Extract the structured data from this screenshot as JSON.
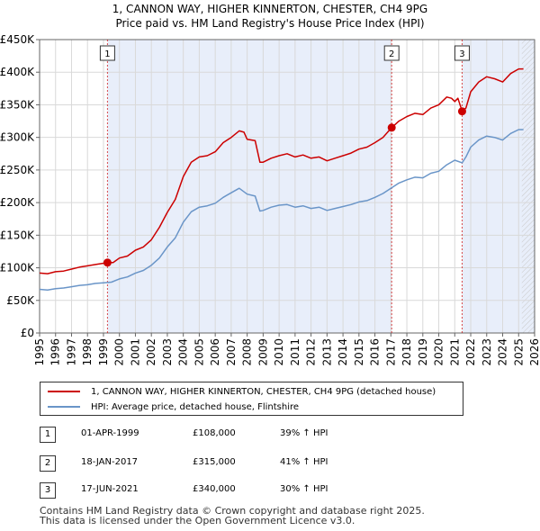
{
  "chart_data": {
    "type": "line",
    "title": "1, CANNON WAY, HIGHER KINNERTON, CHESTER, CH4 9PG",
    "subtitle": "Price paid vs. HM Land Registry's House Price Index (HPI)",
    "xlim": [
      1995,
      2026
    ],
    "ylim": [
      0,
      450000
    ],
    "x_ticks": [
      "1995",
      "1996",
      "1997",
      "1998",
      "1999",
      "2000",
      "2001",
      "2002",
      "2003",
      "2004",
      "2005",
      "2006",
      "2007",
      "2008",
      "2009",
      "2010",
      "2011",
      "2012",
      "2013",
      "2014",
      "2015",
      "2016",
      "2017",
      "2018",
      "2019",
      "2020",
      "2021",
      "2022",
      "2023",
      "2024",
      "2025",
      "2026"
    ],
    "y_ticks": [
      {
        "value": 0,
        "label": "£0"
      },
      {
        "value": 50000,
        "label": "£50K"
      },
      {
        "value": 100000,
        "label": "£100K"
      },
      {
        "value": 150000,
        "label": "£150K"
      },
      {
        "value": 200000,
        "label": "£200K"
      },
      {
        "value": 250000,
        "label": "£250K"
      },
      {
        "value": 300000,
        "label": "£300K"
      },
      {
        "value": 350000,
        "label": "£350K"
      },
      {
        "value": 400000,
        "label": "£400K"
      },
      {
        "value": 450000,
        "label": "£450K"
      }
    ],
    "grid": true,
    "shaded_periods": [
      [
        1999.25,
        2017.05
      ],
      [
        2021.46,
        2026
      ]
    ],
    "projection_start": 2025.2,
    "series": [
      {
        "name": "1, CANNON WAY, HIGHER KINNERTON, CHESTER, CH4 9PG (detached house)",
        "color": "#cc0000",
        "points": [
          [
            1995,
            92000
          ],
          [
            1995.5,
            91000
          ],
          [
            1996,
            94000
          ],
          [
            1996.5,
            95000
          ],
          [
            1997,
            98000
          ],
          [
            1997.5,
            101000
          ],
          [
            1998,
            103000
          ],
          [
            1998.5,
            105000
          ],
          [
            1999,
            107000
          ],
          [
            1999.25,
            108000
          ],
          [
            1999.6,
            108000
          ],
          [
            2000,
            115000
          ],
          [
            2000.5,
            118000
          ],
          [
            2001,
            127000
          ],
          [
            2001.5,
            132000
          ],
          [
            2002,
            143000
          ],
          [
            2002.5,
            162000
          ],
          [
            2003,
            185000
          ],
          [
            2003.5,
            205000
          ],
          [
            2004,
            240000
          ],
          [
            2004.5,
            262000
          ],
          [
            2005,
            270000
          ],
          [
            2005.5,
            272000
          ],
          [
            2006,
            278000
          ],
          [
            2006.5,
            292000
          ],
          [
            2007,
            300000
          ],
          [
            2007.5,
            310000
          ],
          [
            2007.8,
            308000
          ],
          [
            2008,
            297000
          ],
          [
            2008.5,
            295000
          ],
          [
            2008.8,
            262000
          ],
          [
            2009,
            262000
          ],
          [
            2009.5,
            268000
          ],
          [
            2010,
            272000
          ],
          [
            2010.5,
            275000
          ],
          [
            2011,
            270000
          ],
          [
            2011.5,
            273000
          ],
          [
            2012,
            268000
          ],
          [
            2012.5,
            270000
          ],
          [
            2013,
            264000
          ],
          [
            2013.5,
            268000
          ],
          [
            2014,
            272000
          ],
          [
            2014.5,
            276000
          ],
          [
            2015,
            282000
          ],
          [
            2015.5,
            285000
          ],
          [
            2016,
            292000
          ],
          [
            2016.5,
            300000
          ],
          [
            2017.05,
            315000
          ],
          [
            2017.5,
            325000
          ],
          [
            2018,
            332000
          ],
          [
            2018.5,
            337000
          ],
          [
            2019,
            335000
          ],
          [
            2019.5,
            345000
          ],
          [
            2020,
            350000
          ],
          [
            2020.5,
            362000
          ],
          [
            2020.8,
            360000
          ],
          [
            2021,
            355000
          ],
          [
            2021.2,
            360000
          ],
          [
            2021.46,
            340000
          ],
          [
            2021.7,
            345000
          ],
          [
            2022,
            370000
          ],
          [
            2022.5,
            385000
          ],
          [
            2023,
            393000
          ],
          [
            2023.5,
            390000
          ],
          [
            2024,
            385000
          ],
          [
            2024.5,
            398000
          ],
          [
            2025,
            405000
          ],
          [
            2025.3,
            405000
          ]
        ]
      },
      {
        "name": "HPI: Average price, detached house, Flintshire",
        "color": "#6a95c8",
        "points": [
          [
            1995,
            67000
          ],
          [
            1995.5,
            66000
          ],
          [
            1996,
            68000
          ],
          [
            1996.5,
            69000
          ],
          [
            1997,
            71000
          ],
          [
            1997.5,
            73000
          ],
          [
            1998,
            74000
          ],
          [
            1998.5,
            76000
          ],
          [
            1999,
            77000
          ],
          [
            1999.5,
            78000
          ],
          [
            2000,
            83000
          ],
          [
            2000.5,
            86000
          ],
          [
            2001,
            92000
          ],
          [
            2001.5,
            96000
          ],
          [
            2002,
            104000
          ],
          [
            2002.5,
            115000
          ],
          [
            2003,
            132000
          ],
          [
            2003.5,
            146000
          ],
          [
            2004,
            170000
          ],
          [
            2004.5,
            186000
          ],
          [
            2005,
            193000
          ],
          [
            2005.5,
            195000
          ],
          [
            2006,
            199000
          ],
          [
            2006.5,
            208000
          ],
          [
            2007,
            215000
          ],
          [
            2007.5,
            222000
          ],
          [
            2008,
            213000
          ],
          [
            2008.5,
            210000
          ],
          [
            2008.8,
            187000
          ],
          [
            2009,
            188000
          ],
          [
            2009.5,
            193000
          ],
          [
            2010,
            196000
          ],
          [
            2010.5,
            197000
          ],
          [
            2011,
            193000
          ],
          [
            2011.5,
            195000
          ],
          [
            2012,
            191000
          ],
          [
            2012.5,
            193000
          ],
          [
            2013,
            188000
          ],
          [
            2013.5,
            191000
          ],
          [
            2014,
            194000
          ],
          [
            2014.5,
            197000
          ],
          [
            2015,
            201000
          ],
          [
            2015.5,
            203000
          ],
          [
            2016,
            208000
          ],
          [
            2016.5,
            214000
          ],
          [
            2017,
            222000
          ],
          [
            2017.5,
            230000
          ],
          [
            2018,
            235000
          ],
          [
            2018.5,
            239000
          ],
          [
            2019,
            238000
          ],
          [
            2019.5,
            245000
          ],
          [
            2020,
            248000
          ],
          [
            2020.5,
            258000
          ],
          [
            2021,
            265000
          ],
          [
            2021.46,
            261000
          ],
          [
            2021.7,
            270000
          ],
          [
            2022,
            285000
          ],
          [
            2022.5,
            296000
          ],
          [
            2023,
            302000
          ],
          [
            2023.5,
            300000
          ],
          [
            2024,
            296000
          ],
          [
            2024.5,
            306000
          ],
          [
            2025,
            312000
          ],
          [
            2025.3,
            312000
          ]
        ]
      }
    ],
    "sales": [
      {
        "label": "1",
        "x": 1999.25,
        "price": 108000
      },
      {
        "label": "2",
        "x": 2017.05,
        "price": 315000
      },
      {
        "label": "3",
        "x": 2021.46,
        "price": 340000
      }
    ]
  },
  "legend": {
    "property_label": "1, CANNON WAY, HIGHER KINNERTON, CHESTER, CH4 9PG (detached house)",
    "hpi_label": "HPI: Average price, detached house, Flintshire"
  },
  "transactions": [
    {
      "num": "1",
      "date": "01-APR-1999",
      "price": "£108,000",
      "hpi": "39% ↑ HPI"
    },
    {
      "num": "2",
      "date": "18-JAN-2017",
      "price": "£315,000",
      "hpi": "41% ↑ HPI"
    },
    {
      "num": "3",
      "date": "17-JUN-2021",
      "price": "£340,000",
      "hpi": "30% ↑ HPI"
    }
  ],
  "footer": {
    "line1": "Contains HM Land Registry data © Crown copyright and database right 2025.",
    "line2": "This data is licensed under the Open Government Licence v3.0."
  }
}
